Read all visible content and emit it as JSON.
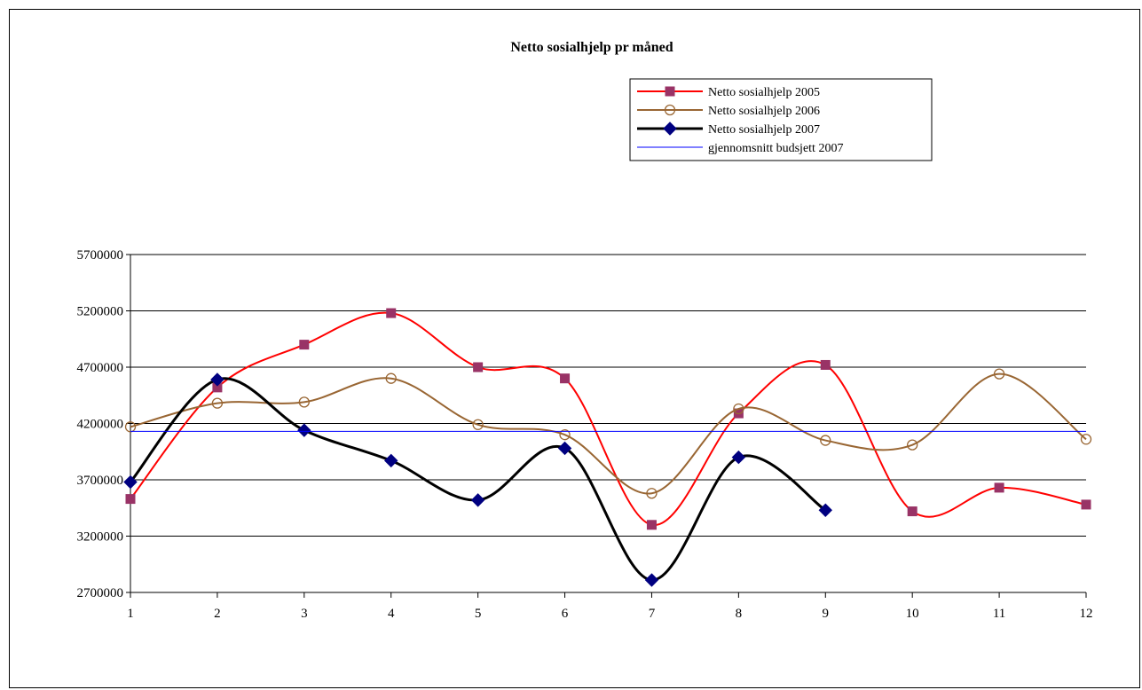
{
  "chart_data": {
    "type": "line",
    "title": "Netto sosialhjelp pr måned",
    "xlabel": "",
    "ylabel": "",
    "categories": [
      "1",
      "2",
      "3",
      "4",
      "5",
      "6",
      "7",
      "8",
      "9",
      "10",
      "11",
      "12"
    ],
    "ylim": [
      2700000,
      5700000
    ],
    "yticks": [
      "2700000",
      "3200000",
      "3700000",
      "4200000",
      "4700000",
      "5200000",
      "5700000"
    ],
    "grid": "horizontal",
    "legend_position": "top-right",
    "series": [
      {
        "name": "Netto sosialhjelp 2005",
        "color": "#ff0000",
        "marker": "square",
        "marker_fill": "#993366",
        "smooth": true,
        "values": [
          3530000,
          4520000,
          4900000,
          5180000,
          4700000,
          4600000,
          3300000,
          4290000,
          4720000,
          3420000,
          3630000,
          3480000
        ]
      },
      {
        "name": "Netto sosialhjelp 2006",
        "color": "#996633",
        "marker": "circle",
        "marker_fill": "none",
        "smooth": true,
        "values": [
          4170000,
          4380000,
          4390000,
          4600000,
          4190000,
          4100000,
          3580000,
          4330000,
          4050000,
          4010000,
          4640000,
          4060000
        ]
      },
      {
        "name": "Netto sosialhjelp 2007",
        "color": "#000000",
        "marker": "diamond",
        "marker_fill": "#000080",
        "smooth": true,
        "values": [
          3680000,
          4590000,
          4140000,
          3870000,
          3520000,
          3980000,
          2810000,
          3900000,
          3430000,
          null,
          null,
          null
        ]
      },
      {
        "name": "gjennomsnitt budsjett 2007",
        "color": "#0000ff",
        "marker": "none",
        "smooth": false,
        "values": [
          4130000,
          4130000,
          4130000,
          4130000,
          4130000,
          4130000,
          4130000,
          4130000,
          4130000,
          4130000,
          4130000,
          4130000
        ]
      }
    ]
  }
}
